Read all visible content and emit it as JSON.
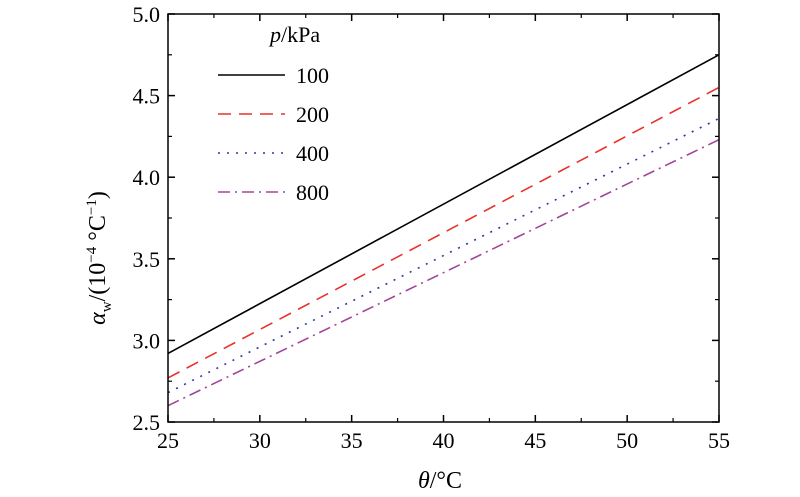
{
  "chart_data": {
    "type": "line",
    "title": "",
    "x": [
      25,
      55
    ],
    "xlim": [
      25,
      55
    ],
    "ylim": [
      2.5,
      5.0
    ],
    "xticks": [
      "25",
      "30",
      "35",
      "40",
      "45",
      "50",
      "55"
    ],
    "yticks": [
      "2.5",
      "3.0",
      "3.5",
      "4.0",
      "4.5",
      "5.0"
    ],
    "xlabel": {
      "symbol": "θ",
      "unit": "/°C"
    },
    "ylabel": {
      "symbol": "α",
      "sub": "w",
      "unit_pre": "/(10",
      "exp": "−4",
      "unit_mid": " °C",
      "exp2": "−1",
      "unit_post": ")"
    },
    "grid": false,
    "legend": {
      "position": "top-left",
      "title_symbol": "p",
      "title_unit": "/kPa"
    },
    "series": [
      {
        "name": "100",
        "values": [
          2.92,
          4.75
        ],
        "color": "#000000",
        "dash": "solid"
      },
      {
        "name": "200",
        "values": [
          2.77,
          4.55
        ],
        "color": "#e8322a",
        "dash": "dashed"
      },
      {
        "name": "400",
        "values": [
          2.68,
          4.36
        ],
        "color": "#2e35a8",
        "dash": "dotted"
      },
      {
        "name": "800",
        "values": [
          2.6,
          4.23
        ],
        "color": "#a3459a",
        "dash": "dashdot"
      }
    ]
  }
}
